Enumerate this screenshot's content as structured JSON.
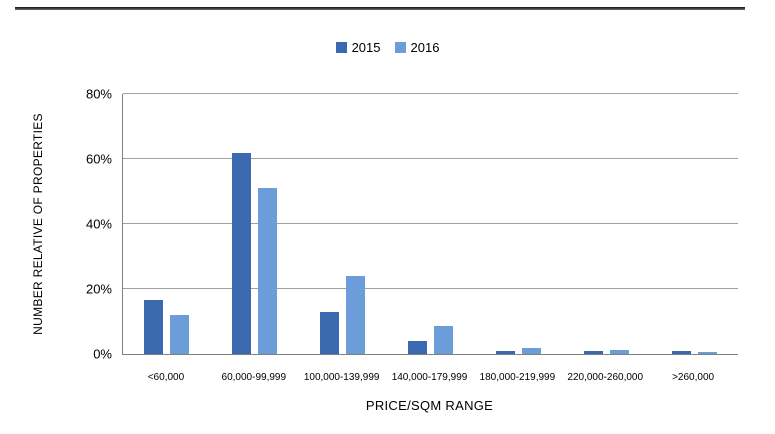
{
  "chart_data": {
    "type": "bar",
    "title": "",
    "xlabel": "PRICE/SQM RANGE",
    "ylabel": "NUMBER RELATIVE OF PROPERTIES",
    "ylim": [
      0,
      80
    ],
    "ytick_values": [
      0,
      20,
      40,
      60,
      80
    ],
    "ytick_labels": [
      "0%",
      "20%",
      "40%",
      "60%",
      "80%"
    ],
    "grid": true,
    "legend_position": "top-center",
    "categories": [
      "<60,000",
      "60,000-99,999",
      "100,000-139,999",
      "140,000-179,999",
      "180,000-219,999",
      "220,000-260,000",
      ">260,000"
    ],
    "series": [
      {
        "name": "2015",
        "color": "#3a69b0",
        "values": [
          16.5,
          62,
          13,
          4,
          1,
          1,
          1
        ]
      },
      {
        "name": "2016",
        "color": "#6d9cdb",
        "values": [
          12,
          51,
          24,
          8.5,
          1.8,
          1.3,
          0.6
        ]
      }
    ]
  },
  "colors": {
    "gridline": "#a0a0a0",
    "axis": "#808080",
    "top_rule": "#1a1a1a"
  }
}
